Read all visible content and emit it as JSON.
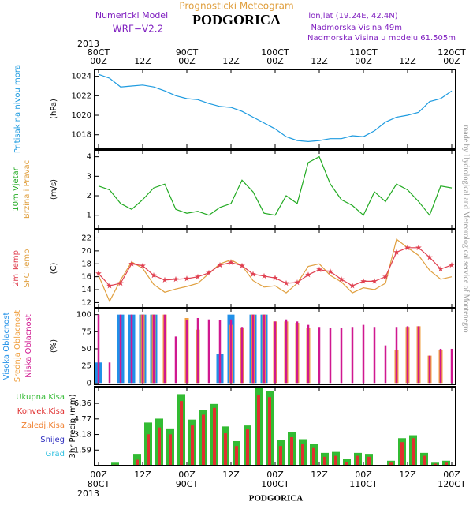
{
  "header": {
    "title": "Prognosticki Meteogram",
    "station": "PODGORICA",
    "model_label": "Numericki Model",
    "model": "WRF−V2.2",
    "coords": "lon,lat (19.24E, 42.4N)",
    "elevation": "Nadmorska Visina 49m",
    "model_elevation": "Nadmorska Visina u modelu 61.505m"
  },
  "footer": {
    "station": "PODGORICA",
    "credit": "made by Hydrological and Meteorological service of Montenegro"
  },
  "time_axis": {
    "year": "2013",
    "xticks": [
      {
        "value": 0,
        "label": "00Z"
      },
      {
        "value": 12,
        "label": "12Z"
      },
      {
        "value": 24,
        "label": "00Z"
      },
      {
        "value": 36,
        "label": "12Z"
      },
      {
        "value": 48,
        "label": "00Z"
      },
      {
        "value": 60,
        "label": "12Z"
      },
      {
        "value": 72,
        "label": "00Z"
      },
      {
        "value": 84,
        "label": "12Z"
      },
      {
        "value": 96,
        "label": "00Z"
      }
    ],
    "dates": [
      {
        "value": 0,
        "label": "80CT"
      },
      {
        "value": 24,
        "label": "90CT"
      },
      {
        "value": 48,
        "label": "100CT"
      },
      {
        "value": 72,
        "label": "110CT"
      },
      {
        "value": 96,
        "label": "120CT"
      }
    ]
  },
  "chart_data": [
    {
      "type": "line",
      "ylabel": "(hPa)",
      "xlim": [
        0,
        96
      ],
      "ylim": [
        1016.6,
        1024.7
      ],
      "yticks": [
        1018,
        1020,
        1022,
        1024
      ],
      "x": [
        0,
        3,
        6,
        9,
        12,
        15,
        18,
        21,
        24,
        27,
        30,
        33,
        36,
        39,
        42,
        45,
        48,
        51,
        54,
        57,
        60,
        63,
        66,
        69,
        72,
        75,
        78,
        81,
        84,
        87,
        90,
        93,
        96
      ],
      "series": [
        {
          "name": "Pritisak na nivou mora",
          "color": "#1e9be0",
          "values": [
            1024.2,
            1023.8,
            1022.9,
            1023.0,
            1023.1,
            1022.9,
            1022.5,
            1022.0,
            1021.7,
            1021.6,
            1021.2,
            1020.9,
            1020.8,
            1020.4,
            1019.8,
            1019.2,
            1018.6,
            1017.8,
            1017.4,
            1017.3,
            1017.4,
            1017.6,
            1017.6,
            1017.9,
            1017.8,
            1018.4,
            1019.3,
            1019.8,
            1020.0,
            1020.3,
            1021.4,
            1021.7,
            1022.5
          ]
        }
      ]
    },
    {
      "type": "line",
      "ylabel": "(m/s)",
      "subtitle": "Brzina i Pravac",
      "xlim": [
        0,
        96
      ],
      "ylim": [
        0.3,
        4.35
      ],
      "yticks": [
        1,
        2,
        3,
        4
      ],
      "x": [
        0,
        3,
        6,
        9,
        12,
        15,
        18,
        21,
        24,
        27,
        30,
        33,
        36,
        39,
        42,
        45,
        48,
        51,
        54,
        57,
        60,
        63,
        66,
        69,
        72,
        75,
        78,
        81,
        84,
        87,
        90,
        93,
        96
      ],
      "series": [
        {
          "name": "10m Vjetar",
          "color": "#22aa22",
          "values": [
            2.5,
            2.3,
            1.6,
            1.3,
            1.8,
            2.4,
            2.6,
            1.3,
            1.1,
            1.2,
            1.0,
            1.4,
            1.6,
            2.8,
            2.2,
            1.1,
            1.0,
            2.0,
            1.6,
            3.7,
            4.0,
            2.6,
            1.8,
            1.5,
            1.0,
            2.2,
            1.7,
            2.6,
            2.3,
            1.7,
            1.0,
            2.5,
            2.4
          ]
        }
      ]
    },
    {
      "type": "line",
      "ylabel": "(C)",
      "xlim": [
        0,
        96
      ],
      "ylim": [
        11.2,
        23.4
      ],
      "yticks": [
        12,
        14,
        16,
        18,
        20,
        22
      ],
      "x": [
        0,
        3,
        6,
        9,
        12,
        15,
        18,
        21,
        24,
        27,
        30,
        33,
        36,
        39,
        42,
        45,
        48,
        51,
        54,
        57,
        60,
        63,
        66,
        69,
        72,
        75,
        78,
        81,
        84,
        87,
        90,
        93,
        96
      ],
      "series": [
        {
          "name": "SFC Temp",
          "color": "#e0a040",
          "values": [
            16.2,
            12.2,
            15.5,
            18.3,
            17.3,
            14.8,
            13.6,
            14.1,
            14.5,
            15.0,
            16.5,
            18.0,
            18.6,
            17.7,
            15.4,
            14.4,
            14.6,
            13.5,
            15.0,
            17.6,
            18.0,
            16.2,
            15.2,
            13.5,
            14.3,
            14.0,
            15.0,
            21.8,
            20.5,
            19.3,
            17.0,
            15.6,
            16.0
          ]
        },
        {
          "name": "2m Temp",
          "color": "#e04050",
          "marker": "star",
          "values": [
            16.5,
            14.6,
            15.0,
            18.0,
            17.7,
            16.2,
            15.5,
            15.6,
            15.7,
            16.0,
            16.6,
            17.8,
            18.2,
            17.7,
            16.4,
            16.1,
            15.8,
            15.0,
            15.1,
            16.3,
            17.1,
            16.8,
            15.6,
            14.6,
            15.3,
            15.3,
            16.0,
            19.8,
            20.5,
            20.5,
            19.0,
            17.2,
            17.8
          ]
        }
      ]
    },
    {
      "type": "bar",
      "ylabel": "(%)",
      "xlim": [
        0,
        96
      ],
      "ylim": [
        -2,
        110
      ],
      "yticks": [
        0,
        25,
        50,
        75,
        100
      ],
      "x": [
        0,
        3,
        6,
        9,
        12,
        15,
        18,
        21,
        24,
        27,
        30,
        33,
        36,
        39,
        42,
        45,
        48,
        51,
        54,
        57,
        60,
        63,
        66,
        69,
        72,
        75,
        78,
        81,
        84,
        87,
        90,
        93,
        96
      ],
      "series": [
        {
          "name": "Visoka Oblacnost",
          "color": "#2090e8",
          "values": [
            30,
            0,
            100,
            100,
            100,
            100,
            0,
            0,
            0,
            0,
            0,
            42,
            100,
            0,
            100,
            100,
            0,
            0,
            0,
            0,
            0,
            0,
            0,
            0,
            0,
            0,
            0,
            0,
            0,
            0,
            0,
            0,
            0
          ]
        },
        {
          "name": "Srednja Oblacnost",
          "color": "#f0a040",
          "values": [
            0,
            0,
            0,
            0,
            100,
            100,
            100,
            0,
            95,
            78,
            0,
            0,
            85,
            80,
            100,
            100,
            90,
            90,
            88,
            80,
            0,
            0,
            0,
            0,
            0,
            0,
            0,
            48,
            82,
            83,
            40,
            48,
            0
          ]
        },
        {
          "name": "Niska Oblacnost",
          "color": "#d01890",
          "values": [
            100,
            30,
            100,
            100,
            100,
            100,
            100,
            68,
            92,
            95,
            93,
            92,
            93,
            82,
            100,
            100,
            90,
            93,
            90,
            85,
            82,
            80,
            80,
            82,
            85,
            82,
            55,
            82,
            83,
            83,
            40,
            50,
            50
          ]
        }
      ]
    },
    {
      "type": "bar",
      "ylabel": "3hr Precip (mm)",
      "xlim": [
        0,
        96
      ],
      "ylim": [
        0,
        8.06
      ],
      "yticks": [
        1.59,
        3.18,
        4.77,
        6.36
      ],
      "x": [
        1.5,
        4.5,
        7.5,
        10.5,
        13.5,
        16.5,
        19.5,
        22.5,
        25.5,
        28.5,
        31.5,
        34.5,
        37.5,
        40.5,
        43.5,
        46.5,
        49.5,
        52.5,
        55.5,
        58.5,
        61.5,
        64.5,
        67.5,
        70.5,
        73.5,
        76.5,
        79.5,
        82.5,
        85.5,
        88.5,
        91.5,
        94.5
      ],
      "series": [
        {
          "name": "Ukupna Kisa",
          "color": "#33bb33",
          "values": [
            0,
            0.3,
            0,
            1.2,
            4.4,
            4.8,
            3.8,
            7.3,
            4.7,
            5.7,
            6.3,
            4.0,
            2.5,
            4.1,
            8.1,
            7.6,
            2.6,
            3.4,
            2.7,
            2.2,
            1.3,
            1.4,
            0.7,
            1.3,
            1.2,
            0,
            0.5,
            2.8,
            3.1,
            1.3,
            0.3,
            0.5
          ]
        },
        {
          "name": "Konvek.Kisa",
          "color": "#e03030",
          "values": [
            0,
            0.1,
            0,
            0.6,
            3.2,
            3.9,
            3.2,
            6.6,
            4.1,
            5.2,
            5.9,
            3.3,
            2.0,
            3.7,
            7.2,
            7.0,
            2.0,
            2.9,
            2.2,
            1.8,
            0.9,
            1.0,
            0.4,
            1.0,
            0.9,
            0,
            0.3,
            2.4,
            2.8,
            1.0,
            0.2,
            0.3
          ]
        },
        {
          "name": "Zaledj.Kisa",
          "color": "#f08030",
          "values": [
            0,
            0,
            0,
            0,
            0,
            0,
            0,
            0,
            0,
            0,
            0,
            0,
            0,
            0,
            0,
            0,
            0,
            0,
            0,
            0,
            0,
            0,
            0,
            0,
            0,
            0,
            0,
            0,
            0,
            0,
            0,
            0
          ]
        },
        {
          "name": "Snijeg",
          "color": "#3030c0",
          "values": [
            0,
            0,
            0,
            0,
            0,
            0,
            0,
            0,
            0,
            0,
            0,
            0,
            0,
            0,
            0,
            0,
            0,
            0,
            0,
            0,
            0,
            0,
            0,
            0,
            0,
            0,
            0,
            0,
            0,
            0,
            0,
            0
          ]
        },
        {
          "name": "Grad",
          "color": "#30c0e0",
          "values": [
            0,
            0,
            0,
            0,
            0,
            0,
            0,
            0,
            0,
            0,
            0,
            0,
            0,
            0,
            0,
            0,
            0,
            0,
            0,
            0,
            0,
            0,
            0,
            0,
            0,
            0,
            0,
            0,
            0,
            0,
            0,
            0
          ]
        }
      ]
    }
  ]
}
